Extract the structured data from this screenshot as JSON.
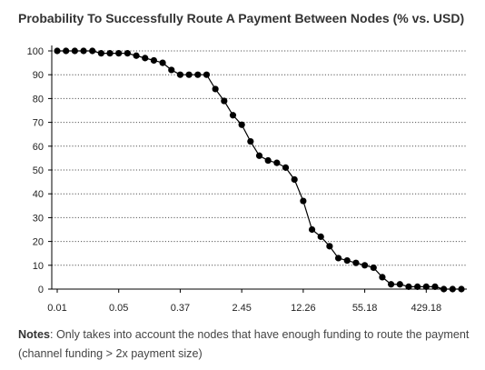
{
  "title": "Probability To Successfully Route A Payment Between Nodes (% vs. USD)",
  "notes": {
    "label": "Notes",
    "text": ": Only takes into account the nodes that have enough funding to route the payment (channel funding > 2x payment size)"
  },
  "chart_data": {
    "type": "line",
    "title": "Probability To Successfully Route A Payment Between Nodes (% vs. USD)",
    "xlabel": "",
    "ylabel": "",
    "ylim": [
      0,
      100
    ],
    "yticks": [
      0,
      10,
      20,
      30,
      40,
      50,
      60,
      70,
      80,
      90,
      100
    ],
    "xtick_labels": [
      "0.01",
      "0.05",
      "0.37",
      "2.45",
      "12.26",
      "55.18",
      "429.18"
    ],
    "xtick_positions": [
      0,
      7,
      14,
      21,
      28,
      35,
      42
    ],
    "grid": "horizontal dotted",
    "series": [
      {
        "values": [
          100,
          100,
          100,
          100,
          100,
          99,
          99,
          99,
          99,
          98,
          97,
          96,
          95,
          92,
          90,
          90,
          90,
          90,
          84,
          79,
          73,
          69,
          62,
          56,
          54,
          53,
          51,
          46,
          37,
          25,
          22,
          18,
          13,
          12,
          11,
          10,
          9,
          5,
          2,
          2,
          1,
          1,
          1,
          1,
          0,
          0,
          0
        ]
      }
    ],
    "colors": {
      "line": "#000000",
      "marker": "#000000",
      "grid": "#555555",
      "axis": "#000000"
    }
  }
}
